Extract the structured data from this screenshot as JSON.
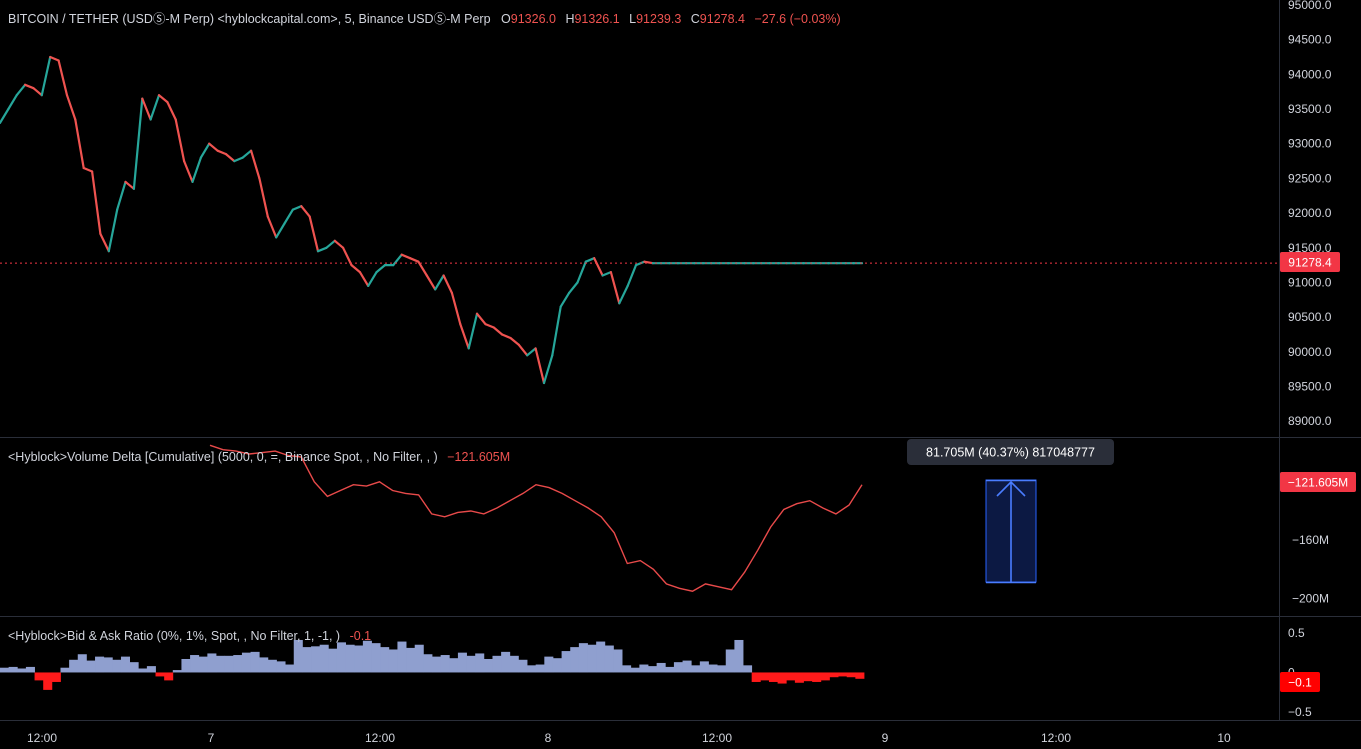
{
  "main": {
    "symbol": "BITCOIN / TETHER (USDⓈ-M Perp) <hyblockcapital.com>, 5, Binance USDⓈ-M Perp",
    "ohlc": [
      {
        "key": "O",
        "value": "91326.0"
      },
      {
        "key": "H",
        "value": "91326.1"
      },
      {
        "key": "L",
        "value": "91239.3"
      },
      {
        "key": "C",
        "value": "91278.4"
      }
    ],
    "change": "−27.6 (−0.03%)",
    "last_price": 91278.4,
    "last_price_label": "91278.4",
    "price_ticks": [
      "95000.0",
      "94500.0",
      "94000.0",
      "93500.0",
      "93000.0",
      "92500.0",
      "92000.0",
      "91500.0",
      "91000.0",
      "90500.0",
      "90000.0",
      "89500.0",
      "89000.0"
    ]
  },
  "volume_delta": {
    "title": "<Hyblock>Volume Delta [Cumulative] (5000, 0, =, Binance Spot, , No Filter, , )",
    "value": "−121.605M",
    "badge": "−121.605M",
    "ticks": [
      "−160M",
      "−200M"
    ],
    "measure_tooltip": "81.705M (40.37%) 817048777"
  },
  "bid_ask": {
    "title": "<Hyblock>Bid & Ask Ratio (0%, 1%, Spot, , No Filter, 1, -1, )",
    "value": "-0.1",
    "badge": "−0.1",
    "ticks": [
      "0.5",
      "0",
      "−0.5"
    ]
  },
  "time_axis": [
    "12:00",
    "7",
    "12:00",
    "8",
    "12:00",
    "9",
    "12:00",
    "10"
  ],
  "colors": {
    "up": "#26a69a",
    "down": "#ef5350",
    "delta_line": "#e84a4a",
    "ratio_pos": "#8f9fcf",
    "ratio_neg": "#ff1a1a",
    "badge_red": "#f23645",
    "measure": "#2962ff"
  },
  "chart_data": [
    {
      "type": "line",
      "name": "price",
      "ylim": [
        88700,
        95000
      ],
      "x": [
        0,
        0.5,
        1,
        1.5,
        2,
        2.5,
        3,
        3.5,
        4,
        4.5,
        5,
        5.5,
        6,
        6.5,
        7,
        7.5,
        8,
        8.5,
        9,
        9.5,
        10,
        10.5,
        11,
        11.5,
        12,
        12.5,
        13,
        13.5,
        14,
        14.5,
        15,
        15.5,
        16,
        16.5,
        17,
        17.5,
        18,
        18.5,
        19,
        19.5,
        20,
        20.5,
        21,
        21.5,
        22,
        22.5,
        23,
        23.5,
        24,
        24.5,
        25,
        25.5,
        26,
        26.5,
        27,
        27.5,
        28,
        28.5,
        29,
        29.5,
        30,
        30.5,
        31,
        31.5,
        32,
        32.5,
        33,
        33.5,
        34,
        34.5,
        35,
        35.5,
        36,
        36.5,
        37,
        37.5,
        38,
        38.5,
        39,
        39.5,
        40,
        40.5,
        41,
        41.5,
        42,
        42.5,
        43,
        43.5,
        44,
        44.5,
        45,
        45.5,
        46,
        46.5,
        47,
        47.5,
        48,
        48.5,
        49,
        49.5,
        50,
        50.5,
        51,
        51.5
      ],
      "y": [
        93300,
        93500,
        93700,
        93850,
        93800,
        93700,
        94250,
        94200,
        93700,
        93350,
        92650,
        92600,
        91700,
        91450,
        92050,
        92450,
        92350,
        93650,
        93350,
        93700,
        93600,
        93350,
        92750,
        92450,
        92800,
        93000,
        92900,
        92850,
        92750,
        92800,
        92900,
        92500,
        91950,
        91650,
        91850,
        92050,
        92100,
        91950,
        91450,
        91500,
        91600,
        91500,
        91250,
        91150,
        90950,
        91150,
        91250,
        91250,
        91400,
        91350,
        91300,
        91100,
        90900,
        91100,
        90850,
        90400,
        90050,
        90550,
        90400,
        90350,
        90250,
        90200,
        90100,
        89950,
        90050,
        89550,
        89950,
        90650,
        90850,
        91000,
        91300,
        91350,
        91100,
        91150,
        90700,
        90950,
        91250,
        91300,
        91278,
        91278,
        91278,
        91278,
        91278,
        91278,
        91278,
        91278,
        91278,
        91278,
        91278,
        91278,
        91278,
        91278,
        91278,
        91278,
        91278,
        91278,
        91278,
        91278,
        91278,
        91278,
        91278,
        91278,
        91278,
        91278
      ]
    },
    {
      "type": "line",
      "name": "volume-delta",
      "ylim": [
        -212,
        -90
      ],
      "x": [
        0,
        1,
        2,
        3,
        4,
        5,
        6,
        7,
        8,
        9,
        10,
        11,
        12,
        13,
        14,
        15,
        16,
        17,
        18,
        19,
        20,
        21,
        22,
        23,
        24,
        25,
        26,
        27,
        28,
        29,
        30,
        31,
        32,
        33,
        34,
        35,
        36,
        37,
        38,
        39,
        40,
        41,
        42,
        43,
        44,
        45,
        46,
        47,
        48,
        49,
        50
      ],
      "y": [
        -95,
        -98,
        -99,
        -101,
        -100,
        -99,
        -102,
        -103,
        -120,
        -130,
        -126,
        -122,
        -123,
        -120,
        -126,
        -128,
        -129,
        -142,
        -144,
        -141,
        -140,
        -142,
        -138,
        -133,
        -128,
        -122,
        -124,
        -128,
        -133,
        -138,
        -144,
        -155,
        -176,
        -174,
        -180,
        -190,
        -193,
        -195,
        -190,
        -192,
        -194,
        -182,
        -167,
        -151,
        -139,
        -135,
        -133,
        -138,
        -142,
        -136,
        -122
      ]
    },
    {
      "type": "bar",
      "name": "bid-ask-ratio",
      "ylim": [
        -0.6,
        0.7
      ],
      "values": [
        0.06,
        0.07,
        0.05,
        0.07,
        -0.1,
        -0.22,
        -0.12,
        0.06,
        0.16,
        0.23,
        0.15,
        0.2,
        0.19,
        0.16,
        0.2,
        0.13,
        0.05,
        0.08,
        -0.05,
        -0.1,
        0.03,
        0.17,
        0.22,
        0.2,
        0.24,
        0.21,
        0.21,
        0.22,
        0.25,
        0.26,
        0.19,
        0.16,
        0.14,
        0.1,
        0.41,
        0.32,
        0.33,
        0.35,
        0.3,
        0.38,
        0.35,
        0.34,
        0.4,
        0.37,
        0.32,
        0.29,
        0.39,
        0.31,
        0.35,
        0.23,
        0.2,
        0.22,
        0.18,
        0.25,
        0.21,
        0.24,
        0.17,
        0.21,
        0.26,
        0.21,
        0.16,
        0.09,
        0.1,
        0.2,
        0.18,
        0.27,
        0.32,
        0.37,
        0.35,
        0.39,
        0.34,
        0.29,
        0.09,
        0.06,
        0.1,
        0.08,
        0.12,
        0.07,
        0.13,
        0.15,
        0.09,
        0.14,
        0.1,
        0.09,
        0.29,
        0.41,
        0.09,
        -0.12,
        -0.1,
        -0.12,
        -0.14,
        -0.1,
        -0.13,
        -0.11,
        -0.12,
        -0.1,
        -0.06,
        -0.05,
        -0.06,
        -0.08
      ]
    }
  ]
}
